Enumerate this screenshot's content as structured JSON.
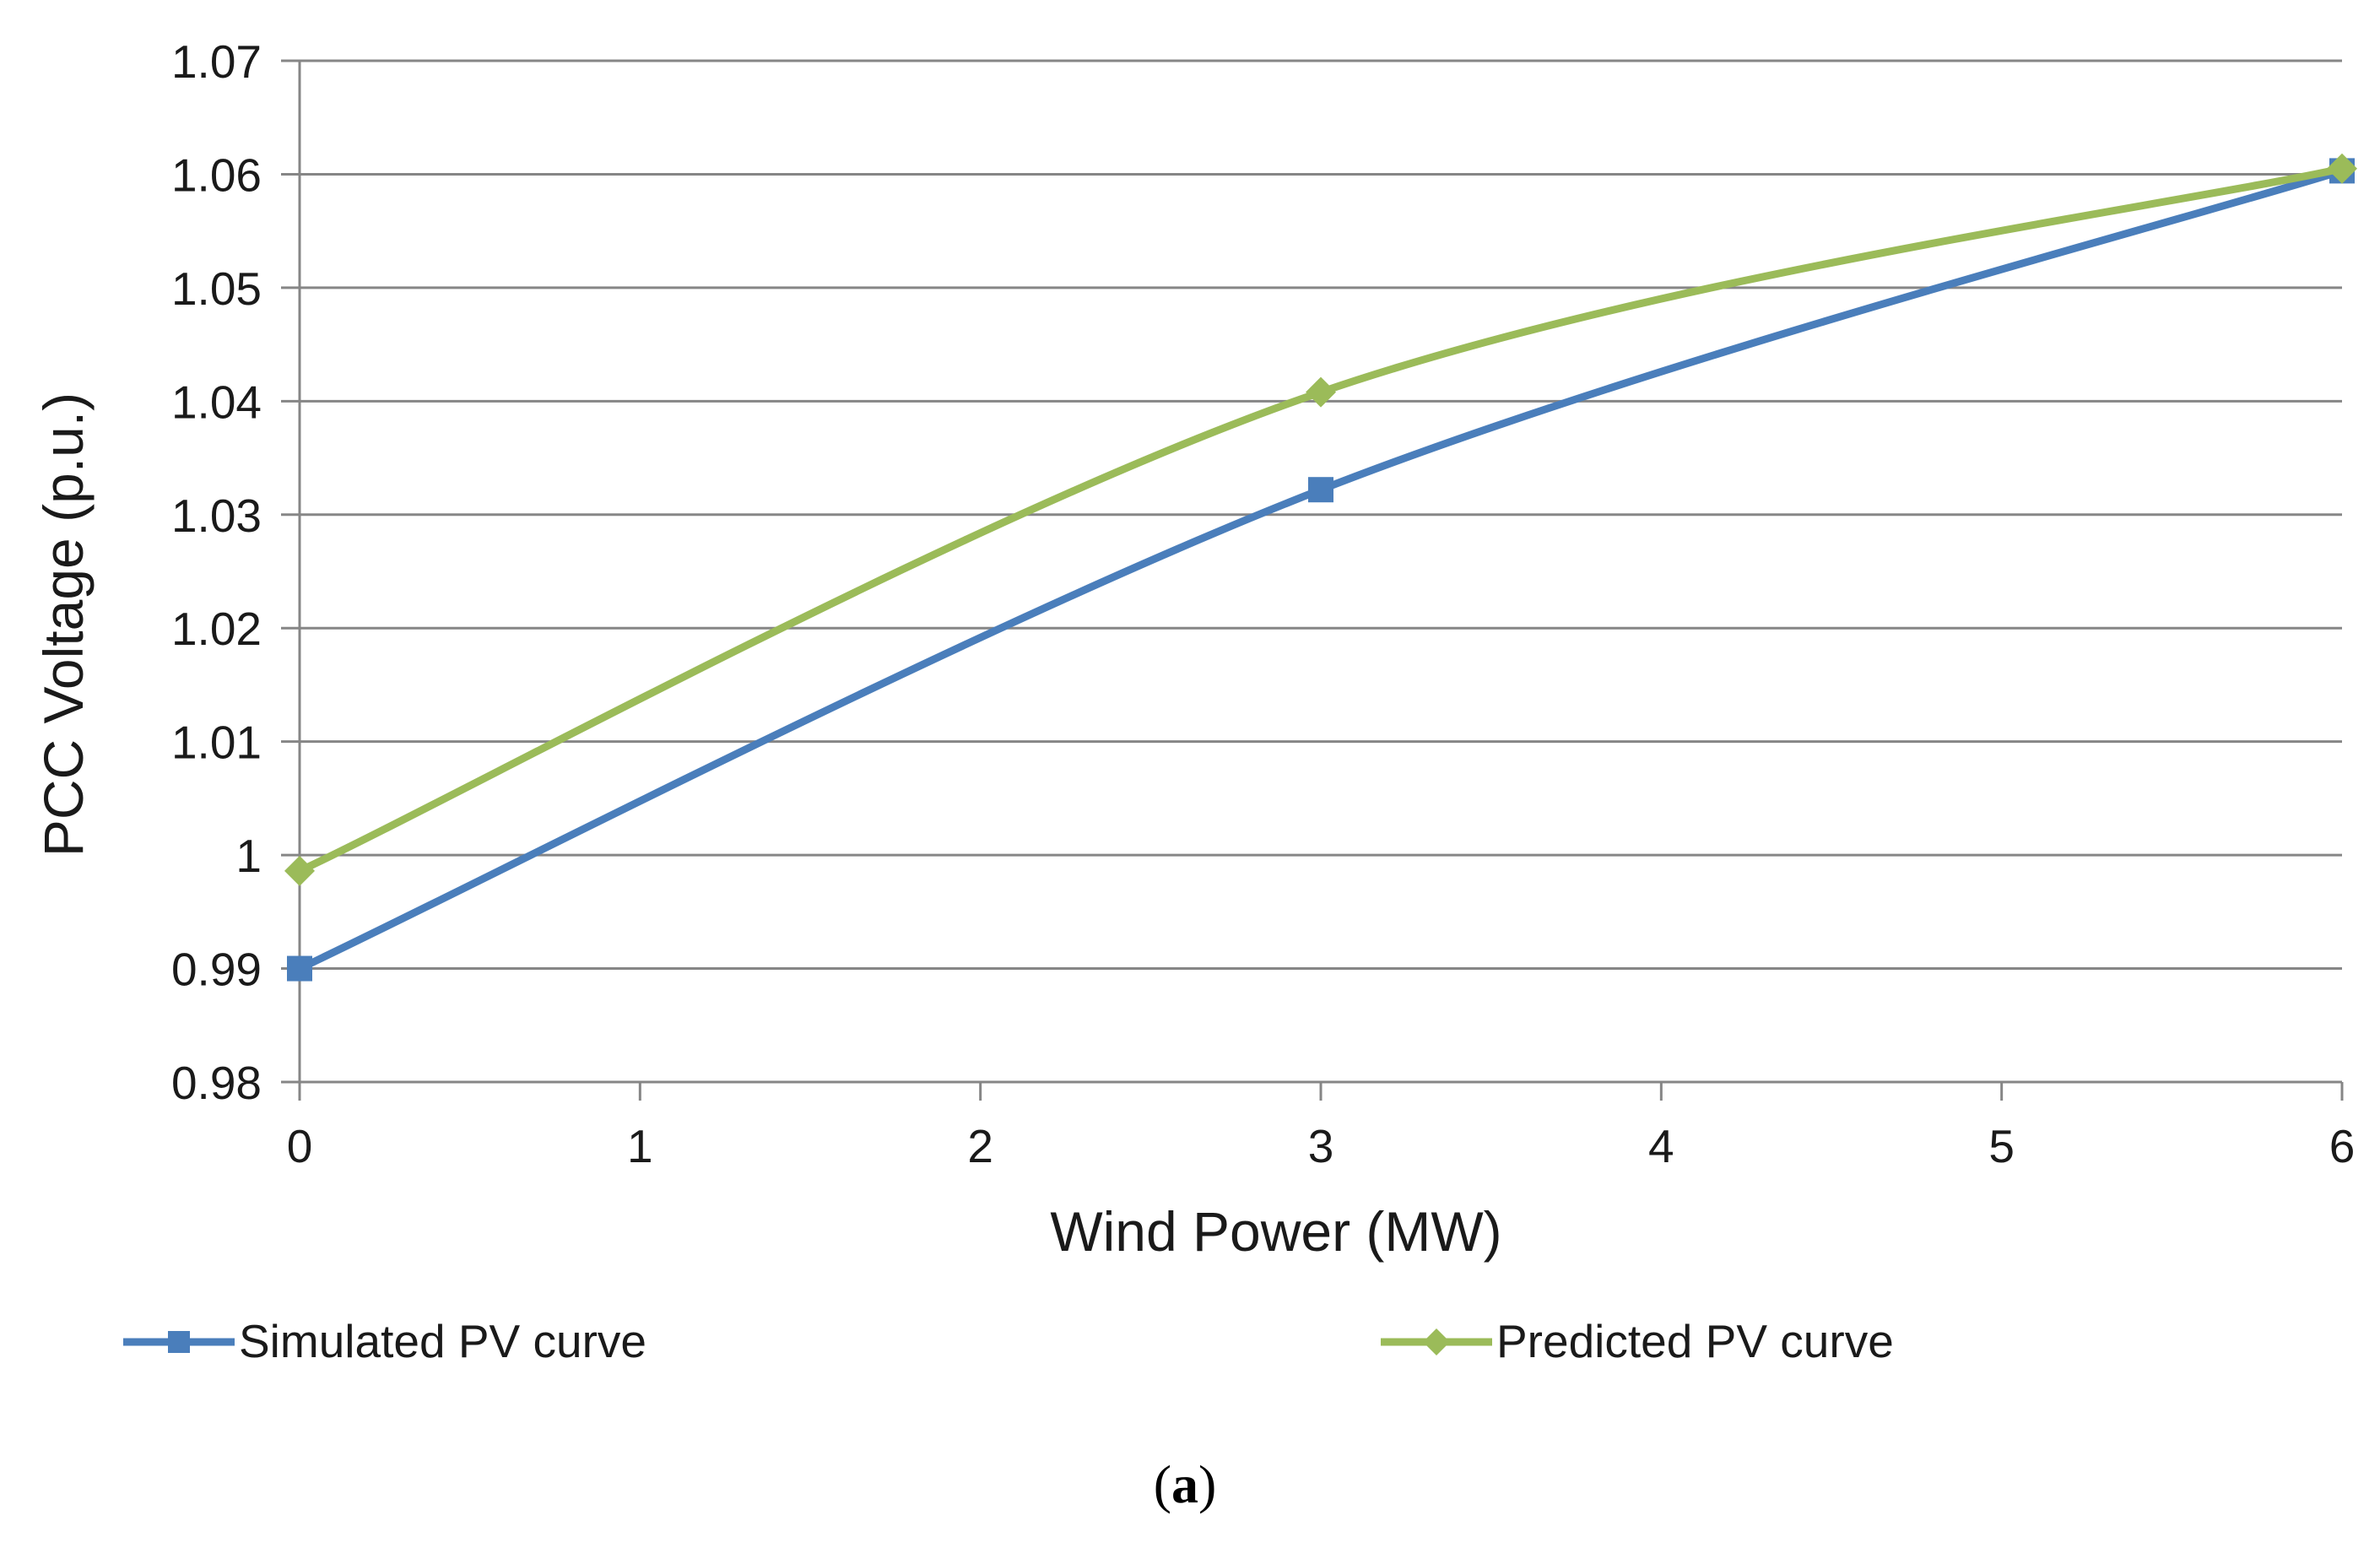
{
  "chart_data": {
    "type": "line",
    "title": "",
    "xlabel": "Wind Power (MW)",
    "ylabel": "PCC Voltage (p.u.)",
    "xlim": [
      0,
      6
    ],
    "ylim": [
      0.98,
      1.07
    ],
    "x_ticks": [
      "0",
      "1",
      "2",
      "3",
      "4",
      "5",
      "6"
    ],
    "y_ticks": [
      "0.98",
      "0.99",
      "1",
      "1.01",
      "1.02",
      "1.03",
      "1.04",
      "1.05",
      "1.06",
      "1.07"
    ],
    "grid": "horizontal",
    "legend_position": "bottom",
    "series": [
      {
        "name": "Simulated PV curve",
        "color": "#4a7ebb",
        "marker": "square",
        "x": [
          0,
          3,
          6
        ],
        "y": [
          0.99,
          1.0322,
          1.0603
        ]
      },
      {
        "name": "Predicted PV curve",
        "color": "#9bbb59",
        "marker": "diamond",
        "x": [
          0,
          3,
          6
        ],
        "y": [
          0.9986,
          1.0408,
          1.0605
        ]
      }
    ]
  },
  "caption": {
    "open": "(",
    "letter": "a",
    "close": ")"
  }
}
